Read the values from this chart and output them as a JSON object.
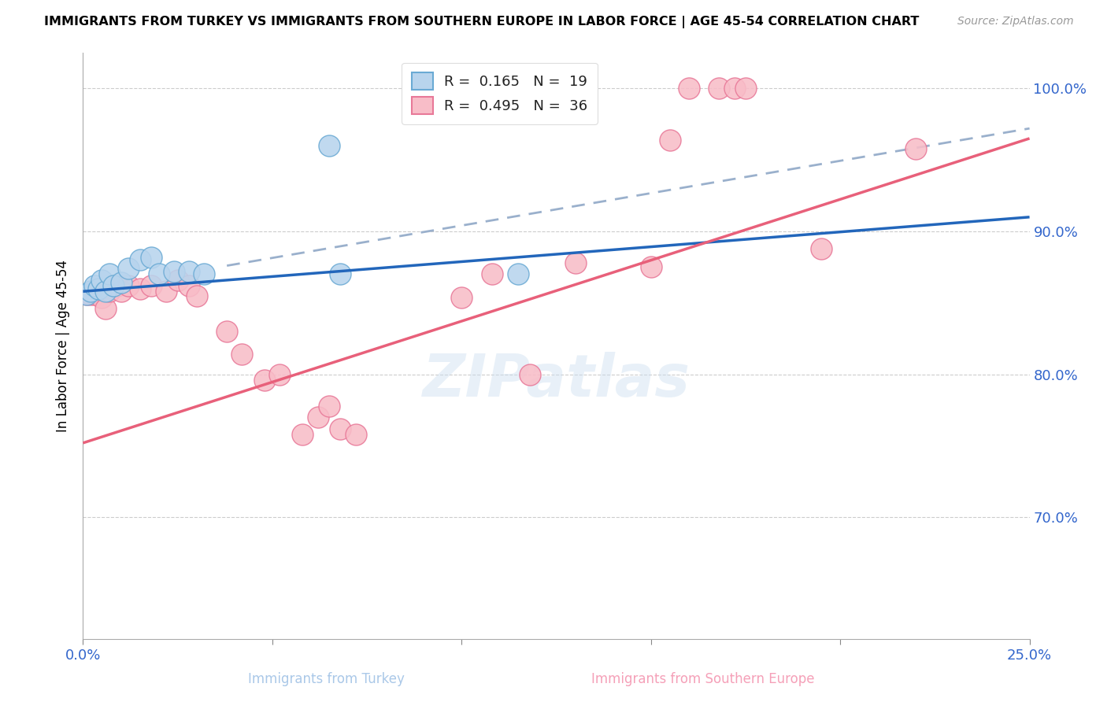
{
  "title": "IMMIGRANTS FROM TURKEY VS IMMIGRANTS FROM SOUTHERN EUROPE IN LABOR FORCE | AGE 45-54 CORRELATION CHART",
  "source": "Source: ZipAtlas.com",
  "xlabel_bottom": "Immigrants from Turkey",
  "xlabel_bottom2": "Immigrants from Southern Europe",
  "ylabel": "In Labor Force | Age 45-54",
  "x_min": 0.0,
  "x_max": 0.25,
  "y_min": 0.615,
  "y_max": 1.025,
  "y_ticks": [
    0.7,
    0.8,
    0.9,
    1.0
  ],
  "y_tick_labels": [
    "70.0%",
    "80.0%",
    "90.0%",
    "100.0%"
  ],
  "x_ticks": [
    0.0,
    0.05,
    0.1,
    0.15,
    0.2,
    0.25
  ],
  "x_tick_labels": [
    "0.0%",
    "",
    "",
    "",
    "",
    "25.0%"
  ],
  "legend_R1": "0.165",
  "legend_N1": "19",
  "legend_R2": "0.495",
  "legend_N2": "36",
  "color_turkey": "#b8d4ed",
  "color_turkey_border": "#6aaad4",
  "color_turkey_line": "#2266bb",
  "color_se": "#f8bdc8",
  "color_se_border": "#e87898",
  "color_se_line": "#e8607a",
  "color_dashed": "#9ab0cc",
  "turkey_x": [
    0.001,
    0.002,
    0.003,
    0.004,
    0.005,
    0.006,
    0.007,
    0.008,
    0.01,
    0.012,
    0.015,
    0.018,
    0.02,
    0.024,
    0.028,
    0.032,
    0.065,
    0.068,
    0.115
  ],
  "turkey_y": [
    0.856,
    0.858,
    0.862,
    0.86,
    0.866,
    0.858,
    0.87,
    0.862,
    0.864,
    0.874,
    0.88,
    0.882,
    0.87,
    0.872,
    0.872,
    0.87,
    0.96,
    0.87,
    0.87
  ],
  "se_x": [
    0.001,
    0.002,
    0.003,
    0.005,
    0.006,
    0.007,
    0.009,
    0.01,
    0.012,
    0.015,
    0.018,
    0.022,
    0.025,
    0.028,
    0.03,
    0.038,
    0.042,
    0.048,
    0.052,
    0.058,
    0.062,
    0.065,
    0.068,
    0.072,
    0.1,
    0.108,
    0.118,
    0.15,
    0.155,
    0.16,
    0.168,
    0.172,
    0.175,
    0.195,
    0.22,
    0.13
  ],
  "se_y": [
    0.856,
    0.856,
    0.856,
    0.854,
    0.846,
    0.858,
    0.862,
    0.858,
    0.862,
    0.86,
    0.862,
    0.858,
    0.866,
    0.862,
    0.855,
    0.83,
    0.814,
    0.796,
    0.8,
    0.758,
    0.77,
    0.778,
    0.762,
    0.758,
    0.854,
    0.87,
    0.8,
    0.875,
    0.964,
    1.0,
    1.0,
    1.0,
    1.0,
    0.888,
    0.958,
    0.878
  ],
  "turkey_line_x": [
    0.0,
    0.25
  ],
  "turkey_line_y": [
    0.858,
    0.91
  ],
  "se_line_x": [
    0.0,
    0.25
  ],
  "se_line_y": [
    0.752,
    0.965
  ],
  "dash_line_x": [
    0.038,
    0.25
  ],
  "dash_line_y": [
    0.876,
    0.972
  ]
}
